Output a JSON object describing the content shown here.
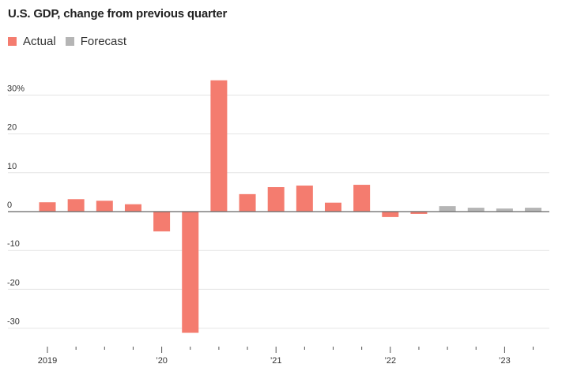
{
  "chart_data": {
    "type": "bar",
    "title": "U.S. GDP, change from previous quarter",
    "legend": [
      {
        "name": "Actual",
        "color": "#f47c6f"
      },
      {
        "name": "Forecast",
        "color": "#b5b5b5"
      }
    ],
    "ylim": [
      -34,
      34
    ],
    "yticks": [
      {
        "value": 30,
        "label": "30%"
      },
      {
        "value": 20,
        "label": "20"
      },
      {
        "value": 10,
        "label": "10"
      },
      {
        "value": 0,
        "label": "0"
      },
      {
        "value": -10,
        "label": "-10"
      },
      {
        "value": -20,
        "label": "-20"
      },
      {
        "value": -30,
        "label": "-30"
      }
    ],
    "quarters": [
      "2019 Q1",
      "2019 Q2",
      "2019 Q3",
      "2019 Q4",
      "2020 Q1",
      "2020 Q2",
      "2020 Q3",
      "2020 Q4",
      "2021 Q1",
      "2021 Q2",
      "2021 Q3",
      "2021 Q4",
      "2022 Q1",
      "2022 Q2",
      "2022 Q3",
      "2022 Q4",
      "2023 Q1",
      "2023 Q2"
    ],
    "series": [
      {
        "name": "Actual",
        "values": [
          2.4,
          3.2,
          2.8,
          1.9,
          -5.1,
          -31.2,
          33.8,
          4.5,
          6.3,
          6.7,
          2.3,
          6.9,
          -1.4,
          -0.6,
          null,
          null,
          null,
          null
        ]
      },
      {
        "name": "Forecast",
        "values": [
          null,
          null,
          null,
          null,
          null,
          null,
          null,
          null,
          null,
          null,
          null,
          null,
          null,
          null,
          1.4,
          1.0,
          0.8,
          1.0
        ]
      }
    ],
    "xticks": [
      {
        "index": 0,
        "label": "2019"
      },
      {
        "index": 4,
        "label": "’20"
      },
      {
        "index": 8,
        "label": "’21"
      },
      {
        "index": 12,
        "label": "’22"
      },
      {
        "index": 16,
        "label": "’23"
      }
    ]
  }
}
